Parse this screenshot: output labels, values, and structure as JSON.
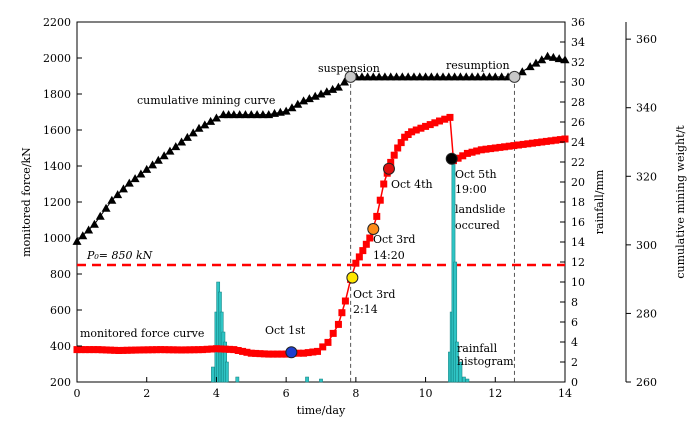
{
  "chart_data": {
    "type": "line",
    "xlabel": "time/day",
    "y1label": "monitored force/kN",
    "y2label": "rainfall/mm",
    "y3label": "cumulative mining weight/t",
    "xlim": [
      0,
      14
    ],
    "ylim_force": [
      200,
      2200
    ],
    "ylim_rain": [
      0,
      36
    ],
    "ylim_weight": [
      260,
      365
    ],
    "x_ticks": [
      "0",
      "2",
      "4",
      "6",
      "8",
      "10",
      "12",
      "14"
    ],
    "y1_ticks": [
      "200",
      "400",
      "600",
      "800",
      "1000",
      "1200",
      "1400",
      "1600",
      "1800",
      "2000",
      "2200"
    ],
    "y2_ticks": [
      "0",
      "2",
      "4",
      "6",
      "8",
      "10",
      "12",
      "14",
      "16",
      "18",
      "20",
      "22",
      "24",
      "26",
      "28",
      "30",
      "32",
      "34",
      "36"
    ],
    "y3_ticks": [
      "260",
      "280",
      "300",
      "320",
      "340",
      "360"
    ],
    "threshold": {
      "value": 850,
      "label": "P₀= 850 kN"
    },
    "vlines": [
      7.85,
      12.55
    ],
    "colors": {
      "force": "#ff0000",
      "mining": "#000000",
      "rain": "#2fc4c4",
      "threshold": "#ff0000"
    },
    "series": [
      {
        "name": "monitored force curve",
        "axis": "force",
        "x": [
          0,
          0.6,
          1.2,
          1.8,
          2.4,
          3.0,
          3.6,
          4.0,
          4.5,
          5.0,
          5.5,
          6.0,
          6.2,
          6.5,
          6.9,
          7.2,
          7.5,
          7.7,
          7.85,
          8.0,
          8.2,
          8.4,
          8.6,
          8.8,
          9.0,
          9.2,
          9.4,
          9.6,
          10.0,
          10.4,
          10.7,
          10.8,
          11.2,
          11.6,
          12.0,
          12.4,
          12.8,
          13.2,
          13.6,
          14.0
        ],
        "values": [
          380,
          380,
          375,
          378,
          380,
          378,
          380,
          385,
          380,
          360,
          355,
          355,
          360,
          360,
          370,
          420,
          520,
          650,
          770,
          860,
          930,
          1000,
          1120,
          1300,
          1420,
          1500,
          1560,
          1590,
          1620,
          1650,
          1670,
          1430,
          1470,
          1490,
          1500,
          1510,
          1520,
          1530,
          1540,
          1550
        ]
      },
      {
        "name": "cumulative mining curve",
        "axis": "weight",
        "x": [
          0,
          0.5,
          1.0,
          1.5,
          2.0,
          2.5,
          3.0,
          3.5,
          4.0,
          4.2,
          4.5,
          5.0,
          5.5,
          6.0,
          6.5,
          7.0,
          7.5,
          7.85,
          8.5,
          9.0,
          10.0,
          11.0,
          12.0,
          12.55,
          13.0,
          13.5,
          14.0
        ],
        "values": [
          301,
          306,
          313,
          318,
          322,
          326,
          330,
          334,
          337,
          338,
          338,
          338,
          338,
          339,
          342,
          344,
          346,
          349,
          349,
          349,
          349,
          349,
          349,
          349,
          352,
          355,
          354
        ]
      },
      {
        "name": "rainfall histogram",
        "axis": "rain",
        "x": [
          3.9,
          4.0,
          4.05,
          4.1,
          4.15,
          4.2,
          4.25,
          4.3,
          4.6,
          6.6,
          7.0,
          10.7,
          10.75,
          10.8,
          10.85,
          10.9,
          11.0,
          11.1,
          11.2
        ],
        "values": [
          1.5,
          7,
          10,
          9,
          7,
          5,
          4,
          2,
          0.5,
          0.5,
          0.3,
          3,
          7,
          22,
          12,
          4,
          2,
          0.5,
          0.3
        ]
      }
    ],
    "events": [
      {
        "label": "Oct 1st",
        "x": 6.15,
        "force": 365,
        "color": "#1f3fd0"
      },
      {
        "label": "Oct 3rd",
        "label2": "2:14",
        "x": 7.9,
        "force": 780,
        "color": "#ffe600"
      },
      {
        "label": "Oct 3rd",
        "label2": "14:20",
        "x": 8.5,
        "force": 1050,
        "color": "#ff8c1a"
      },
      {
        "label": "Oct 4th",
        "x": 8.95,
        "force": 1385,
        "color": "#e01010"
      },
      {
        "label": "Oct 5th",
        "label2": "19:00",
        "label3": "landslide",
        "label4": "occured",
        "x": 10.75,
        "force": 1440,
        "color": "#000000"
      }
    ],
    "annotations": {
      "suspension": {
        "text": "suspension",
        "x": 7.85,
        "weight": 349
      },
      "resumption": {
        "text": "resumption",
        "x": 12.55,
        "weight": 349
      },
      "mining_label": "cumulative mining curve",
      "force_label": "monitored force curve",
      "rain_label_1": "rainfall",
      "rain_label_2": "histogram"
    }
  }
}
